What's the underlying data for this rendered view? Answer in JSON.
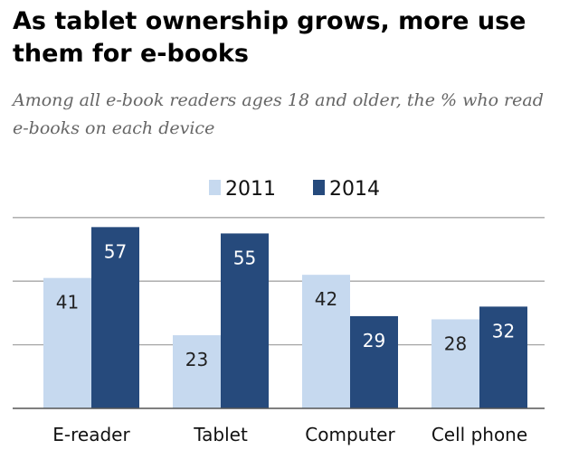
{
  "title": "As tablet ownership grows, more use them for e-books",
  "subtitle": "Among all e-book readers ages 18 and older, the % who read e-books on each device",
  "chart_data": {
    "type": "bar",
    "categories": [
      "E-reader",
      "Tablet",
      "Computer",
      "Cell phone"
    ],
    "series": [
      {
        "name": "2011",
        "values": [
          41,
          23,
          42,
          28
        ],
        "color": "#c6d9ef"
      },
      {
        "name": "2014",
        "values": [
          57,
          55,
          29,
          32
        ],
        "color": "#264a7c"
      }
    ],
    "title": "As tablet ownership grows, more use them for e-books",
    "subtitle": "Among all e-book readers ages 18 and older, the % who read e-books on each device",
    "xlabel": "",
    "ylabel": "",
    "ylim": [
      0,
      60
    ],
    "grid": true,
    "legend": "top-center",
    "data_labels": true,
    "label_colors": {
      "light_bar": "#222222",
      "dark_bar": "#ffffff"
    },
    "gridline_color": "#a6a6a6",
    "axis_color": "#555555"
  }
}
